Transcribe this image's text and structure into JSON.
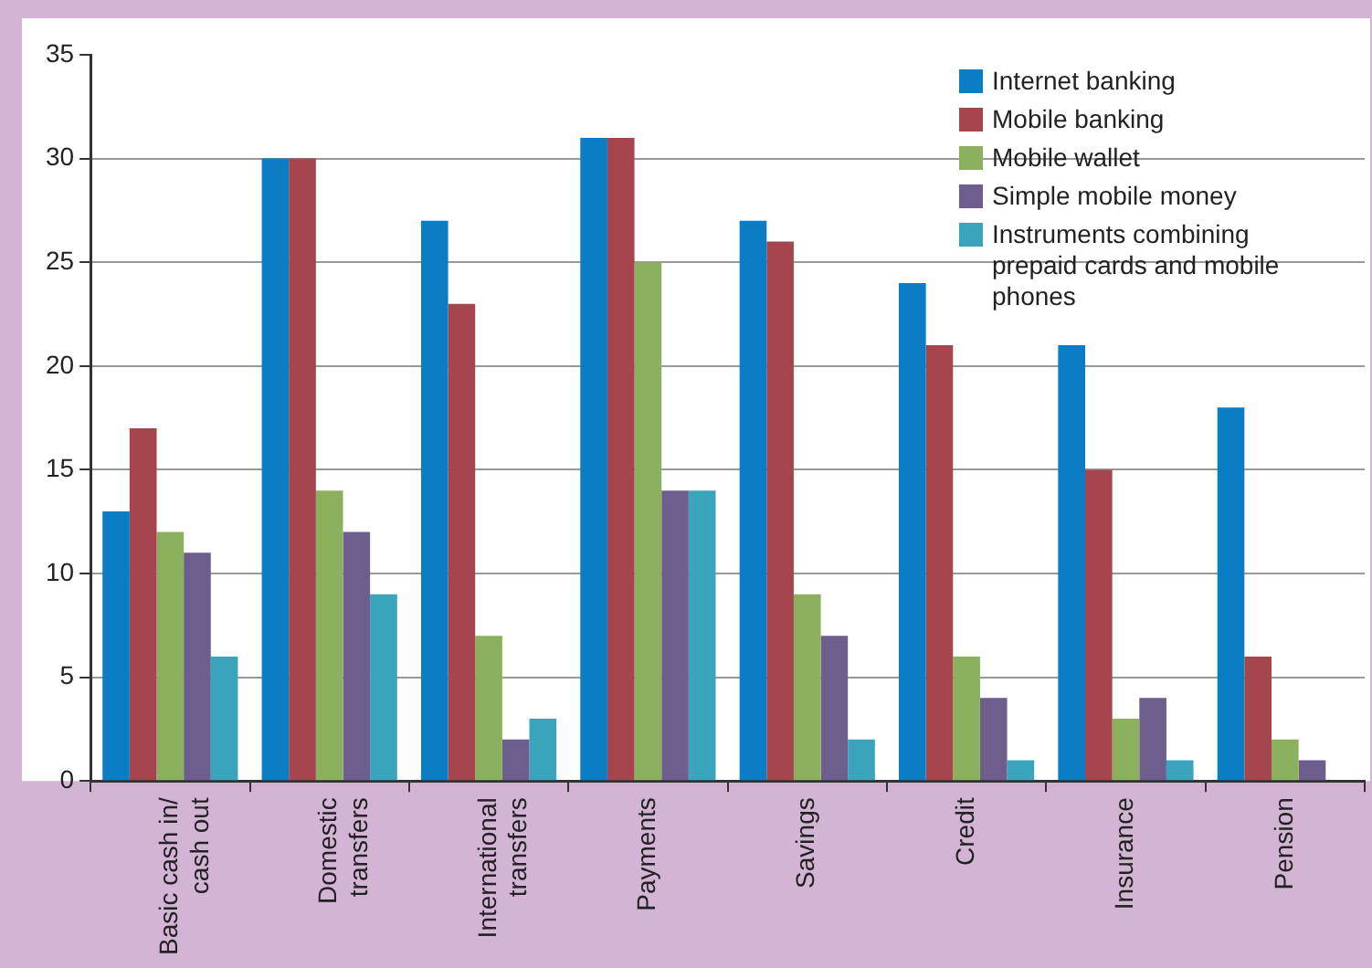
{
  "chart_data": {
    "type": "bar",
    "categories": [
      "Basic cash in/ cash out",
      "Domestic transfers",
      "International transfers",
      "Payments",
      "Savings",
      "Credit",
      "Insurance",
      "Pension"
    ],
    "series": [
      {
        "name": "Internet banking",
        "color": "#0b7dc5",
        "values": [
          13,
          30,
          27,
          31,
          27,
          24,
          21,
          18
        ]
      },
      {
        "name": "Mobile banking",
        "color": "#a5464f",
        "values": [
          17,
          30,
          23,
          31,
          26,
          21,
          15,
          6
        ]
      },
      {
        "name": "Mobile wallet",
        "color": "#8bb05e",
        "values": [
          12,
          14,
          7,
          25,
          9,
          6,
          3,
          2
        ]
      },
      {
        "name": "Simple mobile money",
        "color": "#6e5e8e",
        "values": [
          11,
          12,
          2,
          14,
          7,
          4,
          4,
          1
        ]
      },
      {
        "name": "Instruments combining prepaid cards and mobile phones",
        "color": "#3aa4bd",
        "values": [
          6,
          9,
          3,
          14,
          2,
          1,
          1,
          0
        ]
      }
    ],
    "ylim": [
      0,
      35
    ],
    "yticks": [
      0,
      5,
      10,
      15,
      20,
      25,
      30,
      35
    ],
    "grid": "y",
    "legend": "top right"
  }
}
